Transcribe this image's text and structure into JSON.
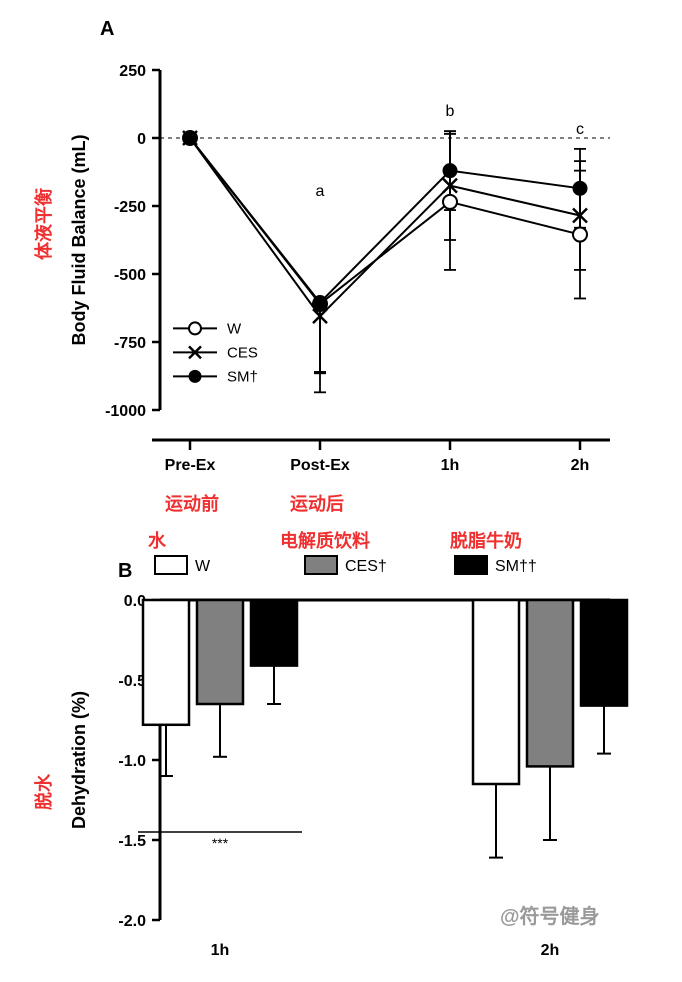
{
  "panelA": {
    "label": "A",
    "type": "line",
    "ylabel_en": "Body Fluid Balance (mL)",
    "ylabel_cn": "体液平衡",
    "ylim": [
      -1000,
      250
    ],
    "ytick_step": 250,
    "yticks": [
      -1000,
      -750,
      -500,
      -250,
      0,
      250
    ],
    "categories": [
      "Pre-Ex",
      "Post-Ex",
      "1h",
      "2h"
    ],
    "category_cn": {
      "Pre-Ex": "运动前",
      "Post-Ex": "运动后"
    },
    "annotations": {
      "Post-Ex": "a",
      "1h": "b",
      "2h": "c"
    },
    "ref_line": 0,
    "series": [
      {
        "name": "W",
        "marker": "open-circle",
        "color": "#000000",
        "values": [
          0,
          -610,
          -235,
          -355
        ],
        "err": [
          0,
          250,
          250,
          235
        ]
      },
      {
        "name": "CES",
        "marker": "x",
        "color": "#000000",
        "values": [
          0,
          -655,
          -175,
          -285
        ],
        "err": [
          0,
          280,
          200,
          200
        ]
      },
      {
        "name": "SM†",
        "marker": "filled-circle",
        "color": "#000000",
        "values": [
          0,
          -605,
          -120,
          -185
        ],
        "err": [
          0,
          260,
          145,
          145
        ]
      }
    ],
    "legend_pos": "inside-lower-left",
    "line_width": 2,
    "marker_size": 7,
    "axis_color": "#000000",
    "background": "#ffffff",
    "label_fontsize": 18,
    "tick_fontsize": 16,
    "panel_label_fontsize": 20
  },
  "panelB": {
    "label": "B",
    "type": "grouped-bar",
    "ylabel_en": "Dehydration (%)",
    "ylabel_cn": "脱水",
    "ylim": [
      -2.0,
      0.0
    ],
    "ytick_step": 0.5,
    "yticks": [
      -2.0,
      -1.5,
      -1.0,
      -0.5,
      0.0
    ],
    "categories": [
      "1h",
      "2h"
    ],
    "series": [
      {
        "name": "W",
        "label_cn": "水",
        "fill": "#ffffff",
        "stroke": "#000000",
        "values": [
          -0.78,
          -1.15
        ],
        "err": [
          0.32,
          0.46
        ]
      },
      {
        "name": "CES†",
        "label_cn": "电解质饮料",
        "fill": "#808080",
        "stroke": "#000000",
        "values": [
          -0.65,
          -1.04
        ],
        "err": [
          0.33,
          0.46
        ]
      },
      {
        "name": "SM††",
        "label_cn": "脱脂牛奶",
        "fill": "#000000",
        "stroke": "#000000",
        "values": [
          -0.41,
          -0.66
        ],
        "err": [
          0.24,
          0.3
        ]
      }
    ],
    "sig_bar": {
      "group": 0,
      "y": -1.45,
      "label": "***"
    },
    "bar_width": 0.7,
    "axis_color": "#000000",
    "label_fontsize": 18,
    "tick_fontsize": 16,
    "panel_label_fontsize": 20
  },
  "watermark": "@符号健身",
  "colors": {
    "red_annotation": "#f03030",
    "grey_bar": "#808080",
    "watermark": "#9a9a9a"
  }
}
